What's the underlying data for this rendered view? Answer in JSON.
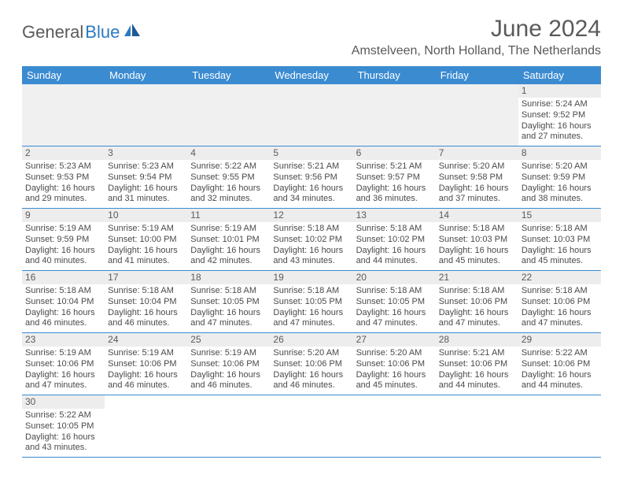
{
  "brand": {
    "part1": "General",
    "part2": "Blue"
  },
  "title": "June 2024",
  "location": "Amstelveen, North Holland, The Netherlands",
  "colors": {
    "header_bg": "#3b8bd1",
    "header_text": "#ffffff",
    "row_border": "#3b8bd1",
    "daynum_bg": "#ededed",
    "empty_bg": "#f0f0f0",
    "body_text": "#4a4a4a",
    "title_text": "#5a5a5a",
    "brand_gray": "#5a5a5a",
    "brand_blue": "#2b7ac0"
  },
  "weekdays": [
    "Sunday",
    "Monday",
    "Tuesday",
    "Wednesday",
    "Thursday",
    "Friday",
    "Saturday"
  ],
  "days": {
    "1": {
      "sunrise": "Sunrise: 5:24 AM",
      "sunset": "Sunset: 9:52 PM",
      "day1": "Daylight: 16 hours",
      "day2": "and 27 minutes."
    },
    "2": {
      "sunrise": "Sunrise: 5:23 AM",
      "sunset": "Sunset: 9:53 PM",
      "day1": "Daylight: 16 hours",
      "day2": "and 29 minutes."
    },
    "3": {
      "sunrise": "Sunrise: 5:23 AM",
      "sunset": "Sunset: 9:54 PM",
      "day1": "Daylight: 16 hours",
      "day2": "and 31 minutes."
    },
    "4": {
      "sunrise": "Sunrise: 5:22 AM",
      "sunset": "Sunset: 9:55 PM",
      "day1": "Daylight: 16 hours",
      "day2": "and 32 minutes."
    },
    "5": {
      "sunrise": "Sunrise: 5:21 AM",
      "sunset": "Sunset: 9:56 PM",
      "day1": "Daylight: 16 hours",
      "day2": "and 34 minutes."
    },
    "6": {
      "sunrise": "Sunrise: 5:21 AM",
      "sunset": "Sunset: 9:57 PM",
      "day1": "Daylight: 16 hours",
      "day2": "and 36 minutes."
    },
    "7": {
      "sunrise": "Sunrise: 5:20 AM",
      "sunset": "Sunset: 9:58 PM",
      "day1": "Daylight: 16 hours",
      "day2": "and 37 minutes."
    },
    "8": {
      "sunrise": "Sunrise: 5:20 AM",
      "sunset": "Sunset: 9:59 PM",
      "day1": "Daylight: 16 hours",
      "day2": "and 38 minutes."
    },
    "9": {
      "sunrise": "Sunrise: 5:19 AM",
      "sunset": "Sunset: 9:59 PM",
      "day1": "Daylight: 16 hours",
      "day2": "and 40 minutes."
    },
    "10": {
      "sunrise": "Sunrise: 5:19 AM",
      "sunset": "Sunset: 10:00 PM",
      "day1": "Daylight: 16 hours",
      "day2": "and 41 minutes."
    },
    "11": {
      "sunrise": "Sunrise: 5:19 AM",
      "sunset": "Sunset: 10:01 PM",
      "day1": "Daylight: 16 hours",
      "day2": "and 42 minutes."
    },
    "12": {
      "sunrise": "Sunrise: 5:18 AM",
      "sunset": "Sunset: 10:02 PM",
      "day1": "Daylight: 16 hours",
      "day2": "and 43 minutes."
    },
    "13": {
      "sunrise": "Sunrise: 5:18 AM",
      "sunset": "Sunset: 10:02 PM",
      "day1": "Daylight: 16 hours",
      "day2": "and 44 minutes."
    },
    "14": {
      "sunrise": "Sunrise: 5:18 AM",
      "sunset": "Sunset: 10:03 PM",
      "day1": "Daylight: 16 hours",
      "day2": "and 45 minutes."
    },
    "15": {
      "sunrise": "Sunrise: 5:18 AM",
      "sunset": "Sunset: 10:03 PM",
      "day1": "Daylight: 16 hours",
      "day2": "and 45 minutes."
    },
    "16": {
      "sunrise": "Sunrise: 5:18 AM",
      "sunset": "Sunset: 10:04 PM",
      "day1": "Daylight: 16 hours",
      "day2": "and 46 minutes."
    },
    "17": {
      "sunrise": "Sunrise: 5:18 AM",
      "sunset": "Sunset: 10:04 PM",
      "day1": "Daylight: 16 hours",
      "day2": "and 46 minutes."
    },
    "18": {
      "sunrise": "Sunrise: 5:18 AM",
      "sunset": "Sunset: 10:05 PM",
      "day1": "Daylight: 16 hours",
      "day2": "and 47 minutes."
    },
    "19": {
      "sunrise": "Sunrise: 5:18 AM",
      "sunset": "Sunset: 10:05 PM",
      "day1": "Daylight: 16 hours",
      "day2": "and 47 minutes."
    },
    "20": {
      "sunrise": "Sunrise: 5:18 AM",
      "sunset": "Sunset: 10:05 PM",
      "day1": "Daylight: 16 hours",
      "day2": "and 47 minutes."
    },
    "21": {
      "sunrise": "Sunrise: 5:18 AM",
      "sunset": "Sunset: 10:06 PM",
      "day1": "Daylight: 16 hours",
      "day2": "and 47 minutes."
    },
    "22": {
      "sunrise": "Sunrise: 5:18 AM",
      "sunset": "Sunset: 10:06 PM",
      "day1": "Daylight: 16 hours",
      "day2": "and 47 minutes."
    },
    "23": {
      "sunrise": "Sunrise: 5:19 AM",
      "sunset": "Sunset: 10:06 PM",
      "day1": "Daylight: 16 hours",
      "day2": "and 47 minutes."
    },
    "24": {
      "sunrise": "Sunrise: 5:19 AM",
      "sunset": "Sunset: 10:06 PM",
      "day1": "Daylight: 16 hours",
      "day2": "and 46 minutes."
    },
    "25": {
      "sunrise": "Sunrise: 5:19 AM",
      "sunset": "Sunset: 10:06 PM",
      "day1": "Daylight: 16 hours",
      "day2": "and 46 minutes."
    },
    "26": {
      "sunrise": "Sunrise: 5:20 AM",
      "sunset": "Sunset: 10:06 PM",
      "day1": "Daylight: 16 hours",
      "day2": "and 46 minutes."
    },
    "27": {
      "sunrise": "Sunrise: 5:20 AM",
      "sunset": "Sunset: 10:06 PM",
      "day1": "Daylight: 16 hours",
      "day2": "and 45 minutes."
    },
    "28": {
      "sunrise": "Sunrise: 5:21 AM",
      "sunset": "Sunset: 10:06 PM",
      "day1": "Daylight: 16 hours",
      "day2": "and 44 minutes."
    },
    "29": {
      "sunrise": "Sunrise: 5:22 AM",
      "sunset": "Sunset: 10:06 PM",
      "day1": "Daylight: 16 hours",
      "day2": "and 44 minutes."
    },
    "30": {
      "sunrise": "Sunrise: 5:22 AM",
      "sunset": "Sunset: 10:05 PM",
      "day1": "Daylight: 16 hours",
      "day2": "and 43 minutes."
    }
  },
  "grid": [
    [
      null,
      null,
      null,
      null,
      null,
      null,
      "1"
    ],
    [
      "2",
      "3",
      "4",
      "5",
      "6",
      "7",
      "8"
    ],
    [
      "9",
      "10",
      "11",
      "12",
      "13",
      "14",
      "15"
    ],
    [
      "16",
      "17",
      "18",
      "19",
      "20",
      "21",
      "22"
    ],
    [
      "23",
      "24",
      "25",
      "26",
      "27",
      "28",
      "29"
    ],
    [
      "30",
      null,
      null,
      null,
      null,
      null,
      null
    ]
  ]
}
